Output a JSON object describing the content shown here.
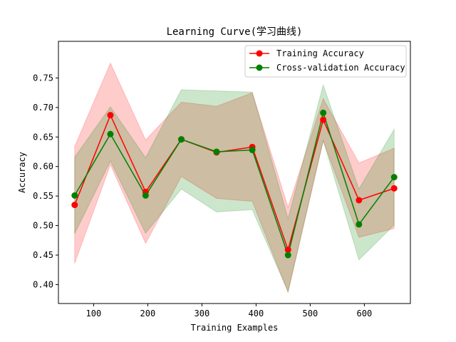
{
  "chart_data": {
    "type": "line",
    "title": "Learning Curve(学习曲线)",
    "xlabel": "Training Examples",
    "ylabel": "Accuracy",
    "xlim": [
      35,
      685
    ],
    "ylim": [
      0.368,
      0.812
    ],
    "xticks": [
      100,
      200,
      300,
      400,
      500,
      600
    ],
    "yticks": [
      0.4,
      0.45,
      0.5,
      0.55,
      0.6,
      0.65,
      0.7,
      0.75
    ],
    "x": [
      65,
      131,
      196,
      262,
      327,
      393,
      459,
      524,
      590,
      655
    ],
    "legend_position": "top-right",
    "grid": false,
    "series": [
      {
        "name": "Training Accuracy",
        "color": "#ff0000",
        "band_color": "#ff0000",
        "values": [
          0.535,
          0.687,
          0.557,
          0.646,
          0.624,
          0.633,
          0.459,
          0.679,
          0.543,
          0.563
        ],
        "upper": [
          0.634,
          0.775,
          0.645,
          0.709,
          0.702,
          0.725,
          0.531,
          0.715,
          0.606,
          0.631
        ],
        "lower": [
          0.436,
          0.603,
          0.47,
          0.583,
          0.546,
          0.541,
          0.387,
          0.643,
          0.48,
          0.495
        ]
      },
      {
        "name": "Cross-validation Accuracy",
        "color": "#008000",
        "band_color": "#008000",
        "values": [
          0.551,
          0.655,
          0.551,
          0.646,
          0.625,
          0.628,
          0.45,
          0.691,
          0.502,
          0.582
        ],
        "upper": [
          0.616,
          0.701,
          0.615,
          0.73,
          0.728,
          0.726,
          0.512,
          0.738,
          0.562,
          0.663
        ],
        "lower": [
          0.486,
          0.609,
          0.487,
          0.562,
          0.523,
          0.527,
          0.388,
          0.644,
          0.442,
          0.501
        ]
      }
    ]
  }
}
